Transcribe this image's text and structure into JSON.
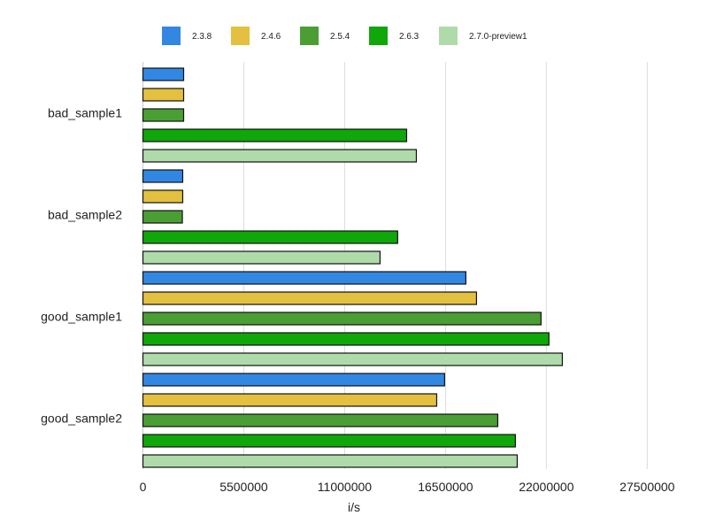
{
  "chart_data": {
    "type": "bar",
    "orientation": "horizontal",
    "title": "",
    "xlabel": "i/s",
    "ylabel": "",
    "xlim": [
      0,
      28160000
    ],
    "xticks": [
      0,
      5500000,
      11000000,
      16500000,
      22000000,
      27500000
    ],
    "xtick_labels": [
      "0",
      "5500000",
      "11000000",
      "16500000",
      "22000000",
      "27500000"
    ],
    "grid": "vertical",
    "legend_position": "top",
    "categories": [
      "bad_sample1",
      "bad_sample2",
      "good_sample1",
      "good_sample2"
    ],
    "series": [
      {
        "name": "2.3.8",
        "color": "#3287e3",
        "values": [
          2220000,
          2170000,
          17610000,
          16450000
        ]
      },
      {
        "name": "2.4.6",
        "color": "#e3c03f",
        "values": [
          2220000,
          2170000,
          18190000,
          16020000
        ]
      },
      {
        "name": "2.5.4",
        "color": "#4a9e33",
        "values": [
          2220000,
          2150000,
          21710000,
          19350000
        ]
      },
      {
        "name": "2.6.3",
        "color": "#0fa70a",
        "values": [
          14380000,
          13890000,
          22140000,
          20310000
        ]
      },
      {
        "name": "2.7.0-preview1",
        "color": "#afdbaa",
        "values": [
          14910000,
          12930000,
          22870000,
          20410000
        ]
      }
    ]
  }
}
